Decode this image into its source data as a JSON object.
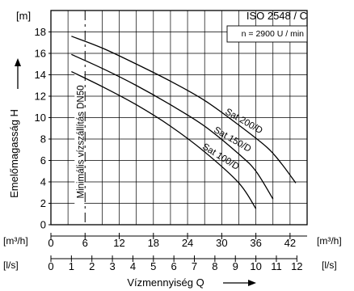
{
  "chart_data": {
    "type": "line",
    "standard_label": "ISO 2548 / C",
    "speed_label": "n = 2900  U / min",
    "y_unit_label": "[m]",
    "ylabel": "Emelőmagasság H",
    "xlabel": "Vízmennyiség Q",
    "x_unit_m3h": "[m³/h]",
    "x_unit_ls": "[l/s]",
    "xlim": [
      0,
      45
    ],
    "ylim": [
      0,
      20
    ],
    "y_ticks": [
      0,
      2,
      4,
      6,
      8,
      10,
      12,
      14,
      16,
      18
    ],
    "x_ticks_m3h": [
      0,
      6,
      12,
      18,
      24,
      30,
      36,
      42
    ],
    "x_ticks_ls": [
      0,
      1,
      2,
      3,
      4,
      5,
      6,
      7,
      8,
      9,
      10,
      11,
      12
    ],
    "grid": true,
    "min_flow": {
      "x": 6,
      "label": "Minimális vízszállítás DN50"
    },
    "series": [
      {
        "name": "Sat 200/D",
        "x": [
          3.6,
          9,
          15,
          21,
          27,
          33,
          38,
          40.5,
          43
        ],
        "y": [
          17.6,
          16.5,
          15,
          13.4,
          11.6,
          9.3,
          7.2,
          5.7,
          3.9
        ]
      },
      {
        "name": "Sat 150/D",
        "x": [
          3.6,
          9,
          15,
          21,
          27,
          33,
          36,
          39
        ],
        "y": [
          15.9,
          14.6,
          13,
          11.2,
          9.2,
          6.6,
          5,
          2.4
        ]
      },
      {
        "name": "Sat 100/D",
        "x": [
          3.6,
          9,
          15,
          21,
          27,
          33,
          36
        ],
        "y": [
          14.3,
          12.9,
          11.2,
          9.2,
          6.8,
          3.9,
          1.5
        ]
      }
    ]
  }
}
